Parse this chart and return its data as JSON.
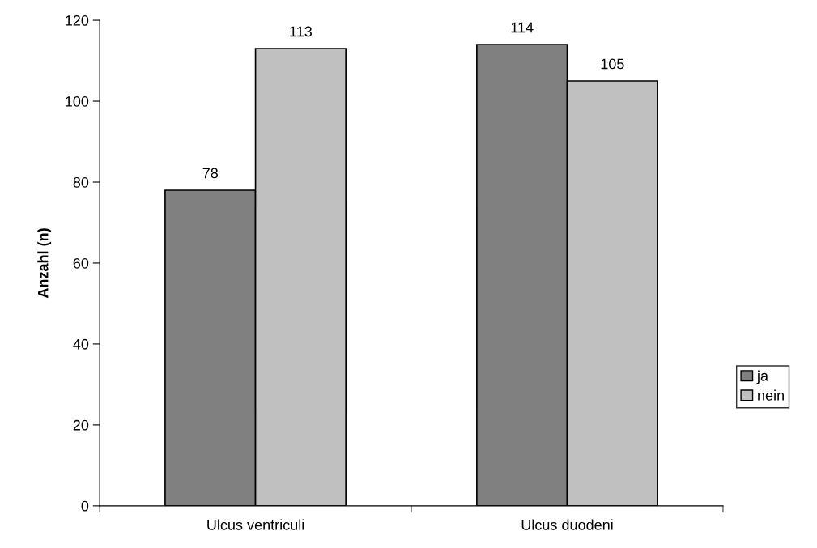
{
  "chart_data": {
    "type": "bar",
    "ylabel": "Anzahl (n)",
    "categories": [
      "Ulcus ventriculi",
      "Ulcus duodeni"
    ],
    "series": [
      {
        "name": "ja",
        "color": "#808080",
        "values": [
          78,
          114
        ]
      },
      {
        "name": "nein",
        "color": "#c0c0c0",
        "values": [
          113,
          105
        ]
      }
    ],
    "ylim": [
      0,
      120
    ],
    "yticks": [
      0,
      20,
      40,
      60,
      80,
      100,
      120
    ],
    "grid": false,
    "legend": "right",
    "data_labels": true
  }
}
